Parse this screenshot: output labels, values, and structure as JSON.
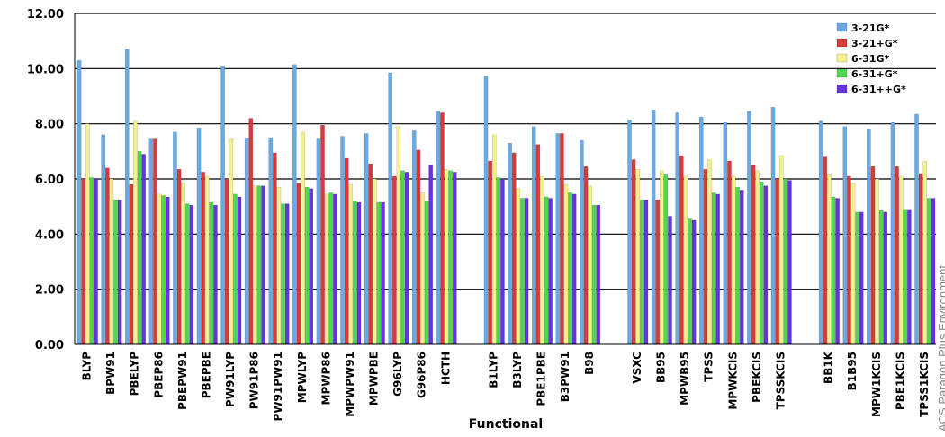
{
  "chart_data": {
    "type": "bar",
    "xlabel": "Functional",
    "ylabel": "",
    "ylim": [
      0,
      12
    ],
    "yticks": [
      "0.00",
      "2.00",
      "4.00",
      "6.00",
      "8.00",
      "10.00",
      "12.00"
    ],
    "grid": true,
    "legend_position": "top-right",
    "categories": [
      "BLYP",
      "BPW91",
      "PBELYP",
      "PBEP86",
      "PBEPW91",
      "PBEPBE",
      "PW91LYP",
      "PW91P86",
      "PW91PW91",
      "MPWLYP",
      "MPWP86",
      "MPWPW91",
      "MPWPBE",
      "G96LYP",
      "G96P86",
      "HCTH",
      "",
      "B1LYP",
      "B3LYP",
      "PBE1PBE",
      "B3PW91",
      "B98",
      "",
      "VSXC",
      "BB95",
      "MPWB95",
      "TPSS",
      "MPWKCIS",
      "PBEKCIS",
      "TPSSKCIS",
      "",
      "BB1K",
      "B1B95",
      "MPW1KCIS",
      "PBE1KCIS",
      "TPSS1KCIS"
    ],
    "series": [
      {
        "name": "3-21G*",
        "color": "#6aaae4",
        "values": [
          10.3,
          7.6,
          10.7,
          7.45,
          7.7,
          7.85,
          10.1,
          7.5,
          7.5,
          10.15,
          7.45,
          7.55,
          7.65,
          9.85,
          7.75,
          8.45,
          null,
          9.75,
          7.3,
          7.9,
          7.65,
          7.4,
          null,
          8.15,
          8.5,
          8.4,
          8.25,
          8.05,
          8.45,
          8.6,
          null,
          8.1,
          7.9,
          7.8,
          8.05,
          8.35
        ]
      },
      {
        "name": "3-21+G*",
        "color": "#d63a3a",
        "values": [
          6.0,
          6.4,
          5.8,
          7.45,
          6.35,
          6.25,
          6.0,
          8.2,
          6.95,
          5.85,
          7.95,
          6.75,
          6.55,
          6.1,
          7.05,
          8.4,
          null,
          6.65,
          6.95,
          7.25,
          7.65,
          6.45,
          null,
          6.7,
          5.25,
          6.85,
          6.35,
          6.65,
          6.5,
          6.0,
          null,
          6.8,
          6.1,
          6.45,
          6.45,
          6.2
        ]
      },
      {
        "name": "6-31G*",
        "color": "#f4f08e",
        "values": [
          8.0,
          6.0,
          8.1,
          5.45,
          5.85,
          6.1,
          7.45,
          5.75,
          5.7,
          7.7,
          5.45,
          5.8,
          6.0,
          7.9,
          5.5,
          6.35,
          null,
          7.6,
          5.65,
          6.1,
          5.8,
          5.75,
          null,
          6.35,
          6.3,
          6.1,
          6.7,
          6.1,
          6.3,
          6.85,
          null,
          6.15,
          5.85,
          6.0,
          6.1,
          6.65
        ]
      },
      {
        "name": "6-31+G*",
        "color": "#4dd84d",
        "values": [
          6.05,
          5.25,
          7.0,
          5.4,
          5.1,
          5.15,
          5.45,
          5.75,
          5.1,
          5.7,
          5.5,
          5.2,
          5.15,
          6.3,
          5.2,
          6.3,
          null,
          6.05,
          5.3,
          5.35,
          5.5,
          5.05,
          null,
          5.25,
          6.15,
          4.55,
          5.5,
          5.7,
          5.9,
          6.0,
          null,
          5.35,
          4.8,
          4.85,
          4.9,
          5.3
        ]
      },
      {
        "name": "6-31++G*",
        "color": "#6633e0",
        "values": [
          6.0,
          5.25,
          6.9,
          5.35,
          5.05,
          5.05,
          5.35,
          5.75,
          5.1,
          5.65,
          5.45,
          5.15,
          5.15,
          6.25,
          6.5,
          6.25,
          null,
          6.0,
          5.3,
          5.3,
          5.45,
          5.05,
          null,
          5.25,
          4.65,
          4.5,
          5.45,
          5.6,
          5.75,
          5.95,
          null,
          5.3,
          4.8,
          4.8,
          4.9,
          5.3
        ]
      }
    ]
  },
  "watermark": "ACS Paragon Plus Environment"
}
